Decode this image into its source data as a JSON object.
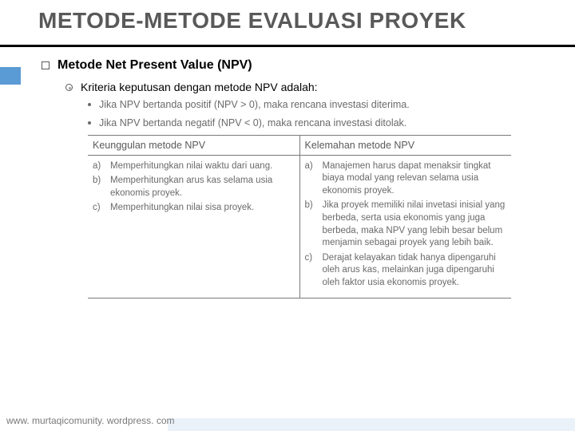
{
  "title": "METODE-METODE EVALUASI PROYEK",
  "section_heading": "Metode Net Present Value (NPV)",
  "sub_heading": "Kriteria keputusan dengan metode NPV adalah:",
  "criteria": [
    "Jika NPV bertanda positif (NPV > 0), maka rencana investasi diterima.",
    "Jika NPV bertanda negatif (NPV < 0), maka rencana investasi ditolak."
  ],
  "table": {
    "header_left": "Keunggulan metode NPV",
    "header_right": "Kelemahan metode NPV",
    "left": [
      {
        "marker": "a)",
        "text": "Memperhitungkan nilai waktu dari uang."
      },
      {
        "marker": "b)",
        "text": "Memperhitungkan arus kas selama usia ekonomis proyek."
      },
      {
        "marker": "c)",
        "text": "Memperhitungkan nilai sisa proyek."
      }
    ],
    "right": [
      {
        "marker": "a)",
        "text": "Manajemen harus dapat menaksir tingkat biaya modal yang relevan selama usia ekonomis proyek."
      },
      {
        "marker": "b)",
        "text": "Jika proyek memiliki nilai invetasi inisial yang berbeda, serta usia ekonomis yang juga berbeda, maka NPV yang lebih besar belum menjamin sebagai proyek yang lebih baik."
      },
      {
        "marker": "c)",
        "text": "Derajat kelayakan tidak hanya dipengaruhi oleh arus kas, melainkan juga dipengaruhi oleh faktor usia ekonomis proyek."
      }
    ]
  },
  "footer": "www. murtaqicomunity. wordpress. com",
  "colors": {
    "title": "#595959",
    "accent": "#5b9bd5",
    "text_muted": "#6a6a6a",
    "border": "#7a7a7a",
    "footer_band": "#eaf1f9"
  }
}
